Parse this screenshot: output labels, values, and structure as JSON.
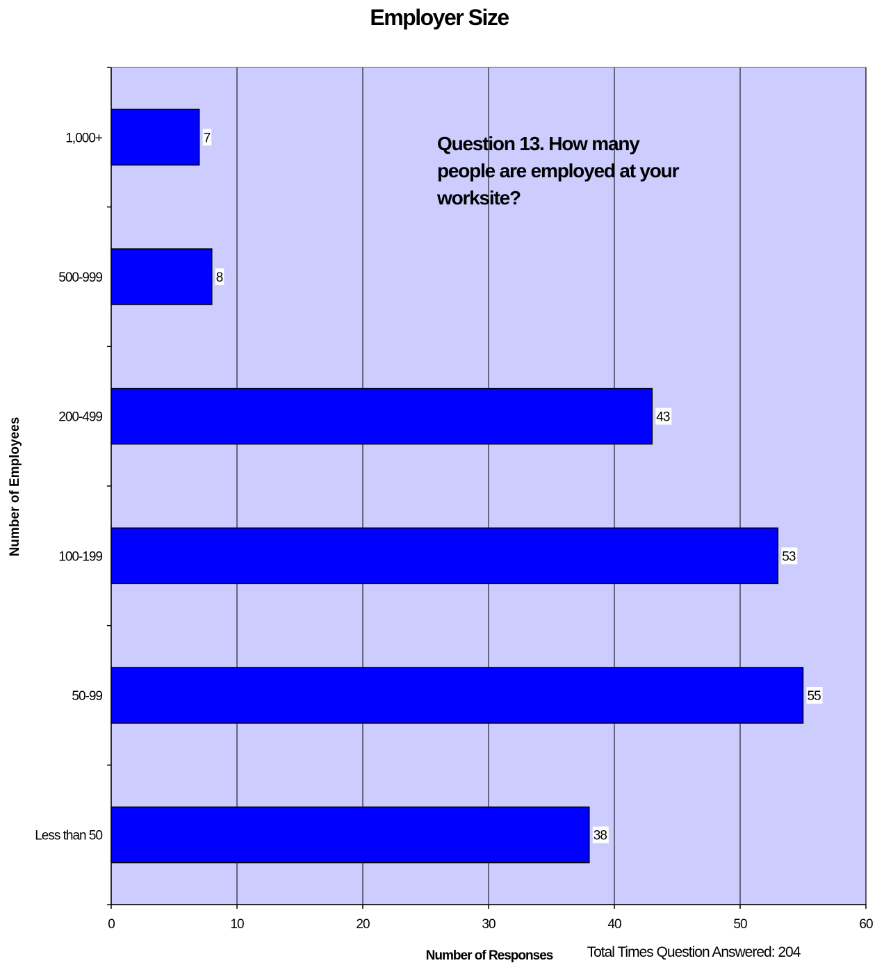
{
  "chart_data": {
    "type": "bar",
    "orientation": "horizontal",
    "title": "Employer Size",
    "annotation": "Question 13.  How many people are employed at your worksite?",
    "annotation_lines": [
      "Question 13.  How many",
      "people are employed at your",
      "worksite?"
    ],
    "xlabel": "Number of Responses",
    "ylabel": "Number of Employees",
    "footnote": "Total Times Question Answered:  204",
    "categories": [
      "1,000+",
      "500-999",
      "200-499",
      "100-199",
      "50-99",
      "Less than 50"
    ],
    "values": [
      7,
      8,
      43,
      53,
      55,
      38
    ],
    "data_labels": [
      "7",
      "8",
      "43",
      "53",
      "55",
      "38"
    ],
    "xlim": [
      0,
      60
    ],
    "xticks": [
      0,
      10,
      20,
      30,
      40,
      50,
      60
    ],
    "xtick_labels": [
      "0",
      "10",
      "20",
      "30",
      "40",
      "50",
      "60"
    ],
    "grid": "vertical",
    "colors": {
      "bar": "#0000ff",
      "plot_background": "#ccccff",
      "gridline": "#000000",
      "label_background": "#ffffff"
    }
  }
}
